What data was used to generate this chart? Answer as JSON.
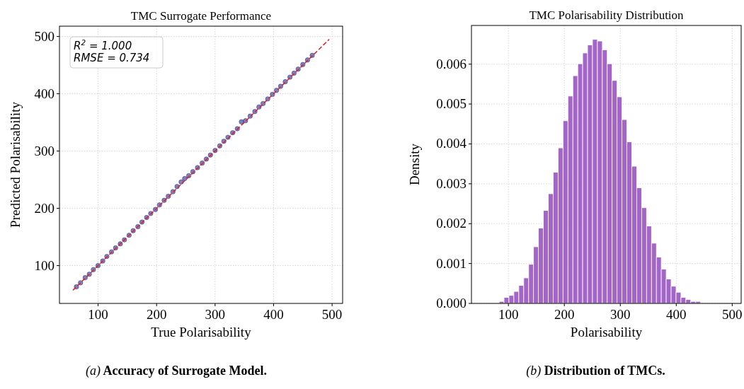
{
  "chart_data": [
    {
      "type": "scatter",
      "title": "TMC Surrogate Performance",
      "xlabel": "True Polarisability",
      "ylabel": "Predicted Polarisability",
      "xlim": [
        34,
        518
      ],
      "ylim": [
        34,
        518
      ],
      "xticks": [
        100,
        200,
        300,
        400,
        500
      ],
      "yticks": [
        100,
        200,
        300,
        400,
        500
      ],
      "grid": true,
      "annotations": [
        "R$^{2}$ = 1.000",
        "RMSE = 0.734",
        "(a) Accuracy of Surrogate Model."
      ],
      "series": [
        {
          "type": "scatter",
          "color": "#2b2a8c",
          "marker": "circle",
          "x": [
            63,
            70,
            78,
            85,
            92,
            100,
            108,
            115,
            123,
            130,
            138,
            145,
            153,
            160,
            168,
            175,
            183,
            190,
            198,
            205,
            213,
            220,
            228,
            235,
            242,
            248,
            255,
            262,
            270,
            278,
            285,
            292,
            300,
            308,
            315,
            322,
            330,
            338,
            345,
            352,
            360,
            368,
            375,
            382,
            390,
            398,
            405,
            412,
            420,
            428,
            435,
            442,
            450,
            458,
            466
          ],
          "values": [
            63,
            70,
            79,
            85,
            93,
            100,
            108,
            116,
            124,
            131,
            138,
            145,
            153,
            161,
            168,
            176,
            184,
            191,
            198,
            206,
            214,
            221,
            229,
            238,
            246,
            252,
            257,
            264,
            271,
            279,
            286,
            293,
            301,
            309,
            317,
            324,
            332,
            339,
            351,
            353,
            361,
            369,
            377,
            383,
            391,
            399,
            406,
            413,
            421,
            429,
            436,
            443,
            451,
            459,
            467
          ]
        },
        {
          "type": "line",
          "color": "#d62728",
          "line_style": "dashed",
          "x": [
            57,
            495
          ],
          "values": [
            57,
            495
          ]
        }
      ]
    },
    {
      "type": "histogram",
      "title": "TMC Polarisability Distribution",
      "xlabel": "Polarisability",
      "ylabel": "Density",
      "color": "#a366c8",
      "xlim": [
        34,
        516
      ],
      "ylim": [
        0,
        0.00697
      ],
      "xticks": [
        100,
        200,
        300,
        400,
        500
      ],
      "yticks": [
        {
          "value": 0,
          "label": "0.000"
        },
        {
          "value": 0.001,
          "label": "0.001"
        },
        {
          "value": 0.002,
          "label": "0.002"
        },
        {
          "value": 0.003,
          "label": "0.003"
        },
        {
          "value": 0.004,
          "label": "0.004"
        },
        {
          "value": 0.005,
          "label": "0.005"
        },
        {
          "value": 0.006,
          "label": "0.006"
        }
      ],
      "grid": true,
      "annotations": [
        "(b) Distribution of TMCs."
      ],
      "bins": [
        83.5,
        92.2,
        101.0,
        109.8,
        118.6,
        127.4,
        136.2,
        144.9,
        153.7,
        162.5,
        171.3,
        180.1,
        188.8,
        197.6,
        206.4,
        215.2,
        224.0,
        232.7,
        241.5,
        250.3,
        259.1,
        267.9,
        276.6,
        285.4,
        294.2,
        303.0,
        311.8,
        320.5,
        329.3,
        338.1,
        346.9,
        355.7,
        364.5,
        373.2,
        382.0,
        390.8,
        399.6,
        408.4,
        417.1,
        425.9,
        434.7,
        443.5
      ],
      "values": [
        5e-05,
        0.00015,
        0.0002,
        0.0003,
        0.00045,
        0.00064,
        0.00098,
        0.00142,
        0.00189,
        0.00233,
        0.00275,
        0.00329,
        0.0039,
        0.00458,
        0.0052,
        0.00571,
        0.00601,
        0.00628,
        0.00648,
        0.00662,
        0.00658,
        0.00636,
        0.00601,
        0.00559,
        0.00518,
        0.00461,
        0.00405,
        0.00344,
        0.0029,
        0.0024,
        0.00194,
        0.00151,
        0.00116,
        0.00086,
        0.00061,
        0.00043,
        0.00028,
        0.00015,
        0.0001,
        5e-05,
        5e-05
      ]
    }
  ]
}
